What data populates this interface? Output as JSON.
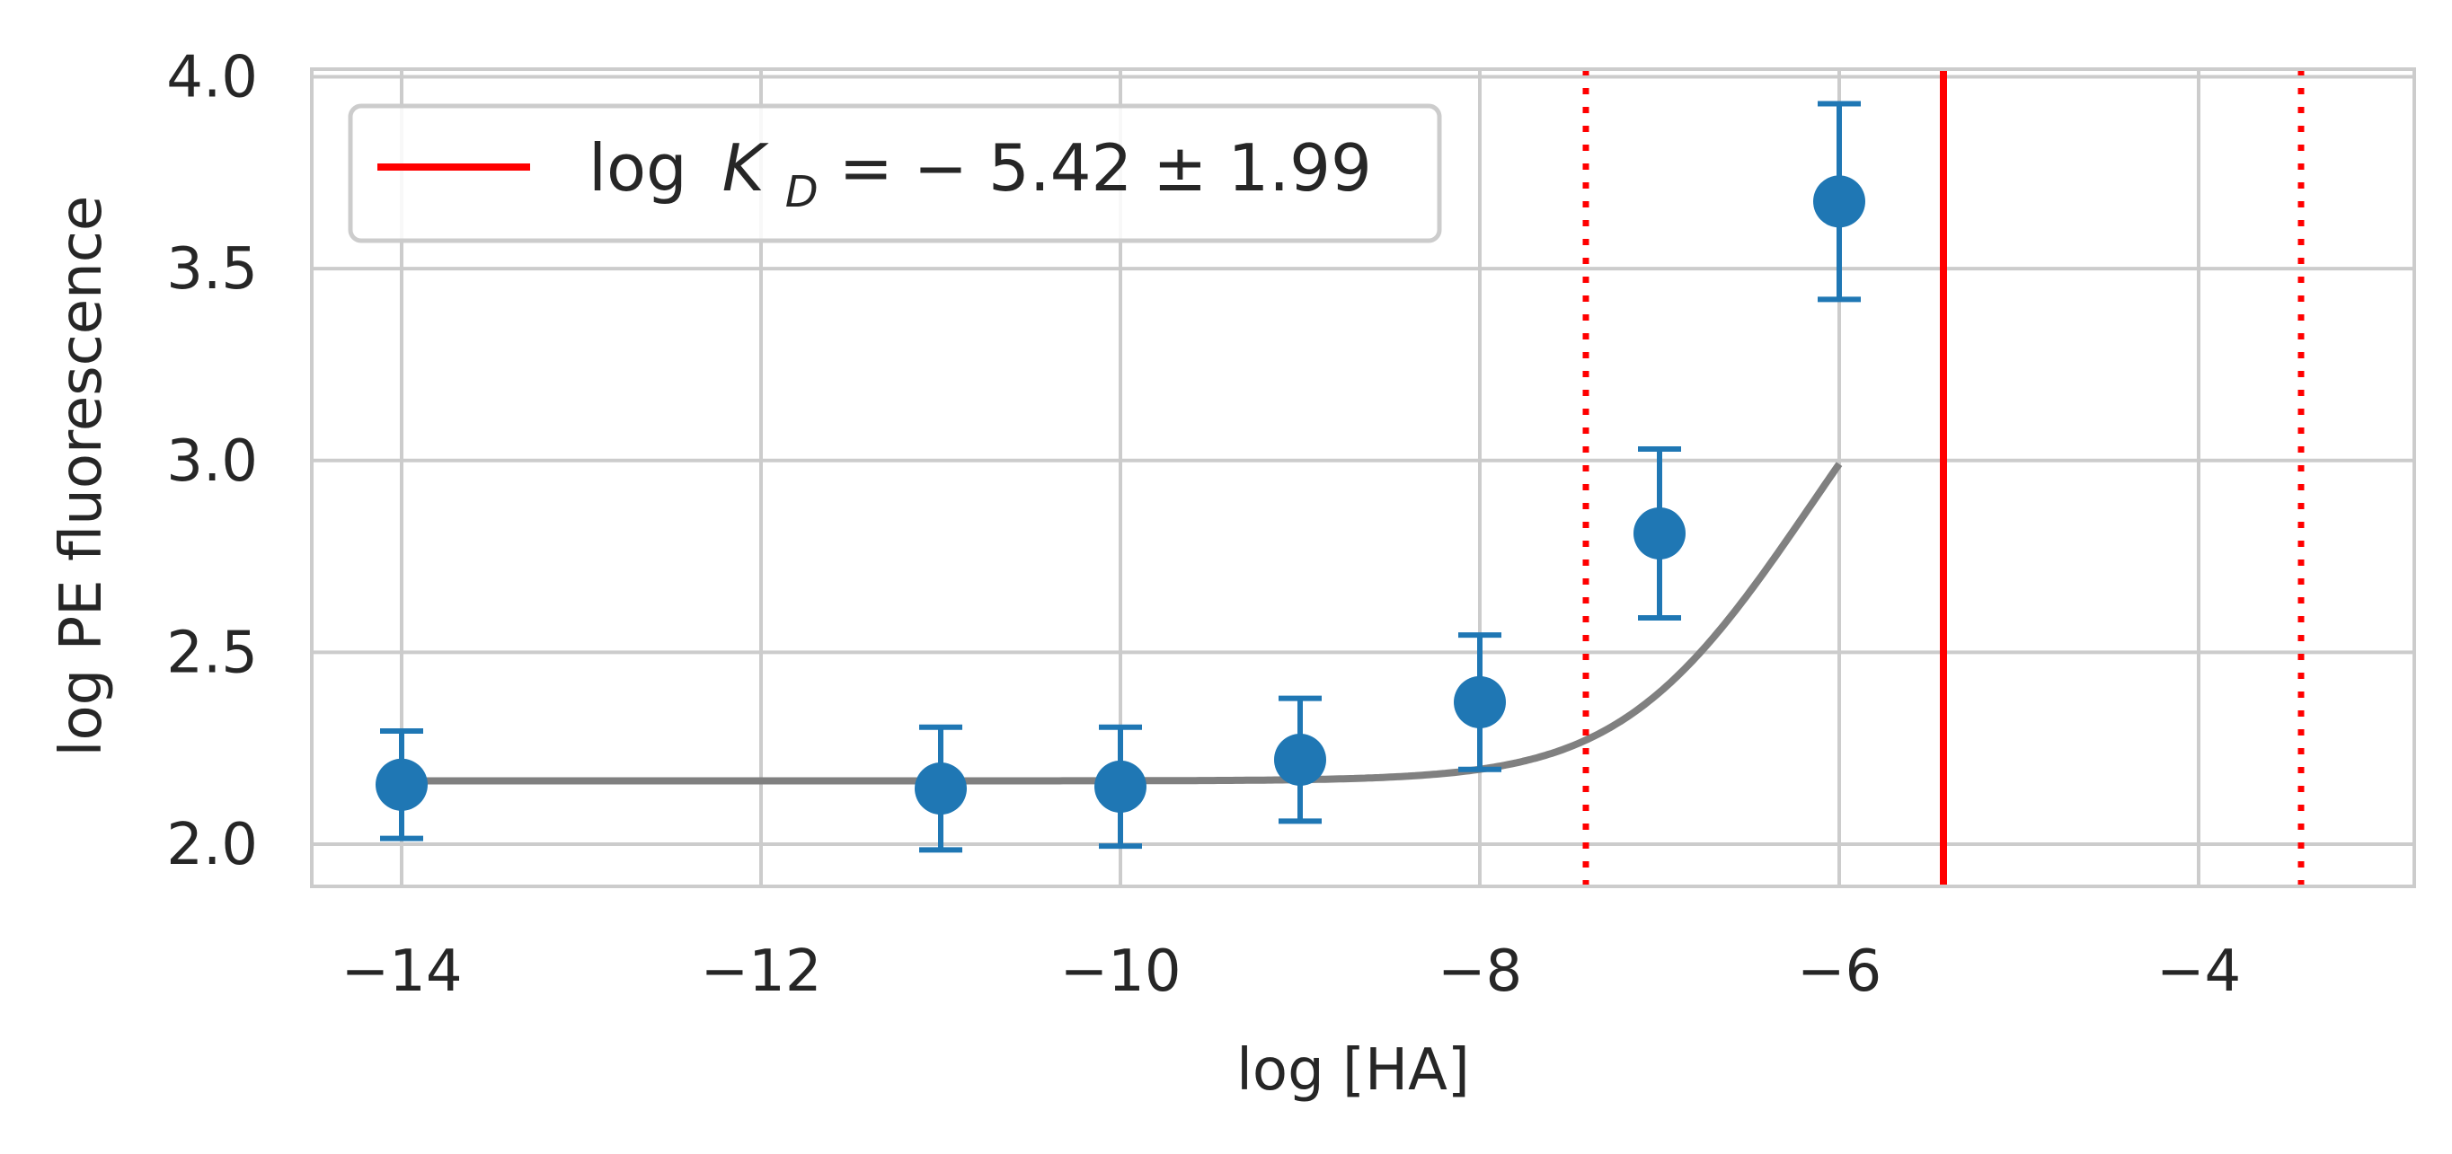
{
  "chart_data": {
    "type": "scatter",
    "title": "",
    "xlabel": "log [HA]",
    "ylabel": "log PE fluorescence",
    "xlim": [
      -14.5,
      -2.8
    ],
    "ylim": [
      1.89,
      4.02
    ],
    "xticks": [
      -14,
      -12,
      -10,
      -8,
      -6,
      -4
    ],
    "xtick_labels": [
      "−14",
      "−12",
      "−10",
      "−8",
      "−6",
      "−4"
    ],
    "yticks": [
      2.0,
      2.5,
      3.0,
      3.5,
      4.0
    ],
    "ytick_labels": [
      "2.0",
      "2.5",
      "3.0",
      "3.5",
      "4.0"
    ],
    "grid": true,
    "legend_position": "top-left",
    "legend": {
      "parts": {
        "pre": "log",
        "k": "K",
        "sub": "D",
        "post": " = − 5.42 ± 1.99"
      }
    },
    "points": {
      "color": "#1f77b4",
      "x": [
        -14,
        -11,
        -10,
        -9,
        -8,
        -7,
        -6
      ],
      "y": [
        2.155,
        2.145,
        2.15,
        2.22,
        2.37,
        2.81,
        3.675
      ],
      "err": [
        0.14,
        0.16,
        0.155,
        0.16,
        0.175,
        0.22,
        0.255
      ]
    },
    "fit_curve": {
      "color": "#808080",
      "baseline": 2.165,
      "amplitude": 4000,
      "log_kd": -5.42,
      "x_range": [
        -14,
        -6
      ]
    },
    "kd_line": {
      "color": "#ff0000",
      "x": -5.42,
      "style": "solid"
    },
    "ci_lines": {
      "color": "#ff0000",
      "x": [
        -7.41,
        -3.43
      ],
      "style": "dotted"
    }
  }
}
